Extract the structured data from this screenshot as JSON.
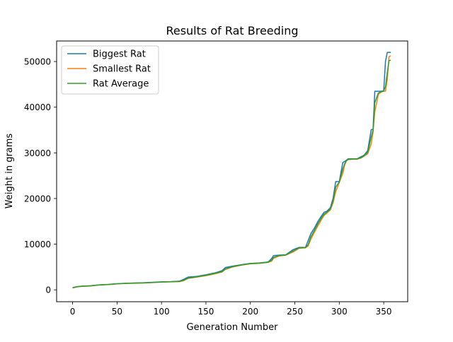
{
  "chart_data": {
    "type": "line",
    "title": "Results of Rat Breeding",
    "xlabel": "Generation Number",
    "ylabel": "Weight in grams",
    "xlim": [
      -18,
      377
    ],
    "ylim": [
      -2600,
      54500
    ],
    "xticks": [
      0,
      50,
      100,
      150,
      200,
      250,
      300,
      350
    ],
    "yticks": [
      0,
      10000,
      20000,
      30000,
      40000,
      50000
    ],
    "grid": false,
    "legend_position": "top-left",
    "series": [
      {
        "name": "Biggest Rat",
        "color": "#1f77b4",
        "x": [
          0,
          5,
          10,
          20,
          30,
          40,
          50,
          60,
          70,
          80,
          90,
          100,
          110,
          120,
          125,
          130,
          140,
          150,
          160,
          168,
          172,
          180,
          190,
          200,
          210,
          220,
          224,
          226,
          232,
          240,
          248,
          255,
          262,
          265,
          268,
          272,
          276,
          280,
          283,
          286,
          290,
          293,
          296,
          300,
          304,
          306,
          308,
          310,
          315,
          320,
          325,
          328,
          332,
          336,
          338,
          340,
          344,
          347,
          350,
          352,
          354,
          356,
          358
        ],
        "y": [
          500,
          700,
          800,
          900,
          1100,
          1200,
          1350,
          1450,
          1500,
          1550,
          1650,
          1750,
          1800,
          1900,
          2300,
          2800,
          2950,
          3300,
          3700,
          4200,
          4900,
          5200,
          5500,
          5800,
          5900,
          6100,
          6900,
          7500,
          7600,
          7700,
          8800,
          9300,
          9300,
          10800,
          12300,
          13500,
          15000,
          16200,
          17000,
          17200,
          18000,
          20000,
          23700,
          23700,
          27900,
          28100,
          28400,
          28700,
          28700,
          28700,
          29200,
          29500,
          30500,
          35100,
          35100,
          43500,
          43500,
          43500,
          43600,
          50000,
          52000,
          52000,
          52000
        ]
      },
      {
        "name": "Smallest Rat",
        "color": "#ff7f0e",
        "x": [
          0,
          5,
          10,
          20,
          30,
          40,
          50,
          60,
          70,
          80,
          90,
          100,
          110,
          120,
          125,
          130,
          140,
          150,
          160,
          168,
          172,
          180,
          190,
          200,
          210,
          220,
          224,
          226,
          232,
          240,
          248,
          255,
          262,
          265,
          268,
          272,
          276,
          280,
          283,
          286,
          290,
          293,
          296,
          300,
          304,
          306,
          308,
          310,
          315,
          320,
          325,
          328,
          332,
          336,
          338,
          340,
          344,
          347,
          350,
          352,
          354,
          356,
          358
        ],
        "y": [
          400,
          650,
          750,
          850,
          1050,
          1150,
          1300,
          1400,
          1450,
          1500,
          1600,
          1700,
          1750,
          1800,
          2000,
          2500,
          2800,
          3100,
          3500,
          3900,
          4500,
          5000,
          5400,
          5700,
          5800,
          6000,
          6300,
          6900,
          7400,
          7600,
          8300,
          9100,
          9200,
          9600,
          11100,
          12600,
          14000,
          15400,
          16300,
          16800,
          17500,
          19000,
          21500,
          23500,
          25500,
          27300,
          28200,
          28500,
          28600,
          28600,
          28900,
          29300,
          29800,
          32000,
          34500,
          39000,
          42800,
          43300,
          43500,
          43500,
          46000,
          51000,
          51300
        ]
      },
      {
        "name": "Rat Average",
        "color": "#2ca02c",
        "x": [
          0,
          5,
          10,
          20,
          30,
          40,
          50,
          60,
          70,
          80,
          90,
          100,
          110,
          120,
          125,
          130,
          140,
          150,
          160,
          168,
          172,
          180,
          190,
          200,
          210,
          220,
          224,
          226,
          232,
          240,
          248,
          255,
          262,
          265,
          268,
          272,
          276,
          280,
          283,
          286,
          290,
          293,
          296,
          300,
          304,
          306,
          308,
          310,
          315,
          320,
          325,
          328,
          332,
          336,
          338,
          340,
          344,
          347,
          350,
          352,
          354,
          356,
          358
        ],
        "y": [
          450,
          680,
          780,
          880,
          1080,
          1180,
          1320,
          1420,
          1480,
          1520,
          1620,
          1720,
          1780,
          1850,
          2100,
          2600,
          2850,
          3200,
          3600,
          4000,
          4600,
          5100,
          5450,
          5750,
          5850,
          6050,
          6500,
          7100,
          7500,
          7650,
          8500,
          9200,
          9250,
          9900,
          11600,
          13000,
          14500,
          15800,
          16600,
          17000,
          17700,
          19500,
          22500,
          23600,
          26500,
          27600,
          28300,
          28600,
          28650,
          28650,
          29000,
          29400,
          30100,
          33500,
          35000,
          41000,
          43100,
          43400,
          43550,
          44500,
          47500,
          50200,
          50300
        ]
      }
    ]
  }
}
